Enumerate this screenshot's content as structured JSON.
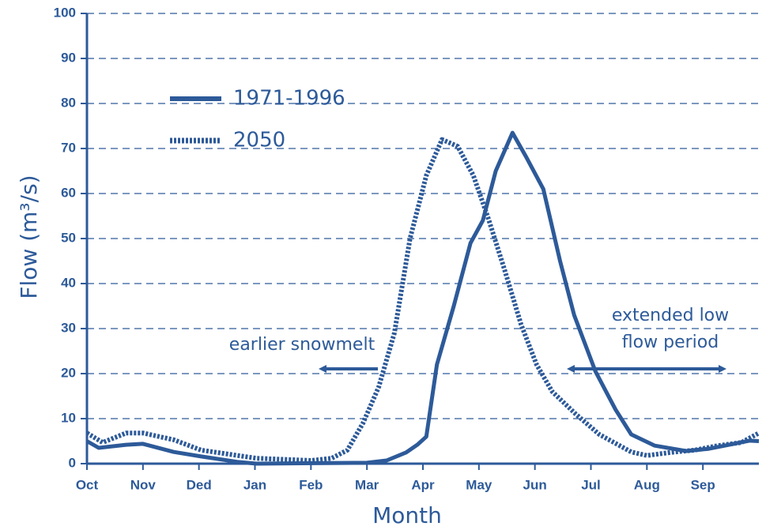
{
  "chart_data": {
    "type": "line",
    "x_label": "Month",
    "y_label": "Flow (m³/s)",
    "xlim": [
      0,
      12
    ],
    "xticks": [
      {
        "value": 0,
        "label": "Oct"
      },
      {
        "value": 1,
        "label": "Nov"
      },
      {
        "value": 2,
        "label": "Ded"
      },
      {
        "value": 3,
        "label": "Jan"
      },
      {
        "value": 4,
        "label": "Feb"
      },
      {
        "value": 5,
        "label": "Mar"
      },
      {
        "value": 6,
        "label": "Apr"
      },
      {
        "value": 7,
        "label": "May"
      },
      {
        "value": 8,
        "label": "Jun"
      },
      {
        "value": 9,
        "label": "Jul"
      },
      {
        "value": 10,
        "label": "Aug"
      },
      {
        "value": 11,
        "label": "Sep"
      }
    ],
    "ylim": [
      0,
      100
    ],
    "yticks": [
      0,
      10,
      20,
      30,
      40,
      50,
      60,
      70,
      80,
      90,
      100
    ],
    "grid": true,
    "legend": "upper left",
    "annotations": [
      "earlier snowmelt",
      "extended low",
      "flow period"
    ],
    "series": [
      {
        "name": "1971-1996",
        "color": "#2d5a99",
        "style": "solid",
        "x": [
          0,
          0.21,
          0.7,
          1,
          1.55,
          2.04,
          2.68,
          3.03,
          5,
          5.35,
          5.7,
          5.9,
          6.06,
          6.25,
          6.55,
          6.85,
          7.07,
          7.3,
          7.6,
          7.85,
          8.15,
          8.45,
          8.7,
          9.08,
          9.44,
          9.72,
          10.14,
          10.7,
          11.1,
          11.55,
          11.83,
          12
        ],
        "values": [
          5,
          3.5,
          4.2,
          4.4,
          2.6,
          1.6,
          0.4,
          0,
          0.2,
          0.7,
          2.5,
          4.2,
          6,
          22,
          35,
          49,
          54,
          65,
          73.5,
          68,
          61,
          45,
          33,
          20.5,
          12,
          6.5,
          4,
          2.8,
          3.3,
          4.4,
          5.1,
          5
        ]
      },
      {
        "name": "2050",
        "color": "#2d5a99",
        "style": "dotted",
        "x": [
          0,
          0.28,
          0.7,
          1,
          1.55,
          2.04,
          3.03,
          4.01,
          4.37,
          4.65,
          4.93,
          5.21,
          5.49,
          5.77,
          6.06,
          6.34,
          6.62,
          6.9,
          7.18,
          7.46,
          7.75,
          8.03,
          8.31,
          8.73,
          9.15,
          9.72,
          10,
          10.42,
          10.85,
          11.27,
          11.69,
          12
        ],
        "values": [
          6.8,
          4.7,
          6.8,
          6.8,
          5.3,
          3,
          1.2,
          0.7,
          1.2,
          3,
          9,
          17,
          29,
          50,
          64,
          72,
          70.5,
          64,
          54,
          43,
          31,
          22,
          16,
          11,
          6.5,
          2.6,
          1.8,
          2.5,
          3,
          4,
          4.7,
          6.8
        ]
      }
    ]
  }
}
